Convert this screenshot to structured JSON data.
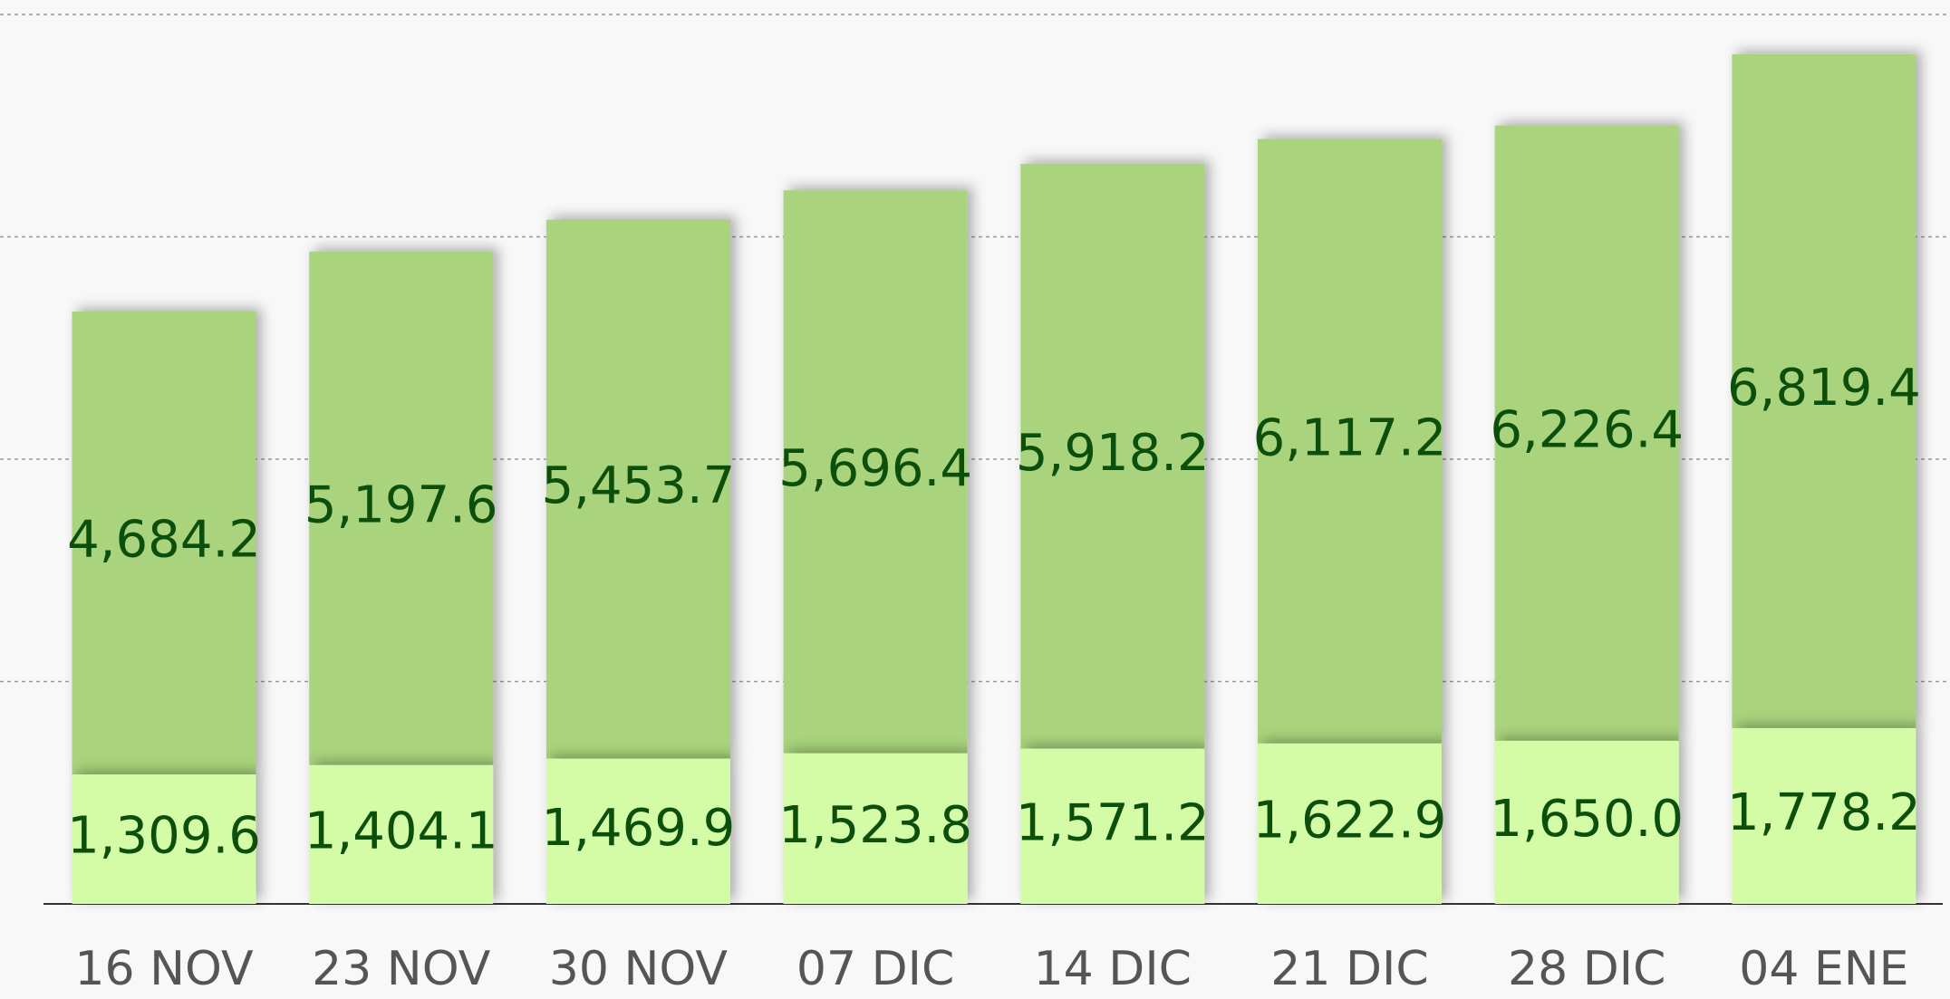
{
  "chart_data": {
    "type": "stacked_bar",
    "categories": [
      "16 NOV",
      "23 NOV",
      "30 NOV",
      "07 DIC",
      "14 DIC",
      "21 DIC",
      "28 DIC",
      "04 ENE"
    ],
    "series": [
      {
        "color": "#d4fba5",
        "values": [
          1309.6,
          1404.1,
          1469.9,
          1523.8,
          1571.2,
          1622.9,
          1650.0,
          1778.2
        ],
        "value_labels": [
          "1,309.6",
          "1,404.1",
          "1,469.9",
          "1,523.8",
          "1,571.2",
          "1,622.9",
          "1,650.0",
          "1,778.2"
        ]
      },
      {
        "color": "#a9d37b",
        "values": [
          4684.2,
          5197.6,
          5453.7,
          5696.4,
          5918.2,
          6117.2,
          6226.4,
          6819.4
        ],
        "value_labels": [
          "4,684.2",
          "5,197.6",
          "5,453.7",
          "5,696.4",
          "5,918.2",
          "6,117.2",
          "6,226.4",
          "6,819.4"
        ]
      }
    ],
    "ylim": [
      0,
      9000
    ],
    "yticks": [
      0,
      2250,
      4500,
      6750,
      9000
    ],
    "grid": true
  }
}
